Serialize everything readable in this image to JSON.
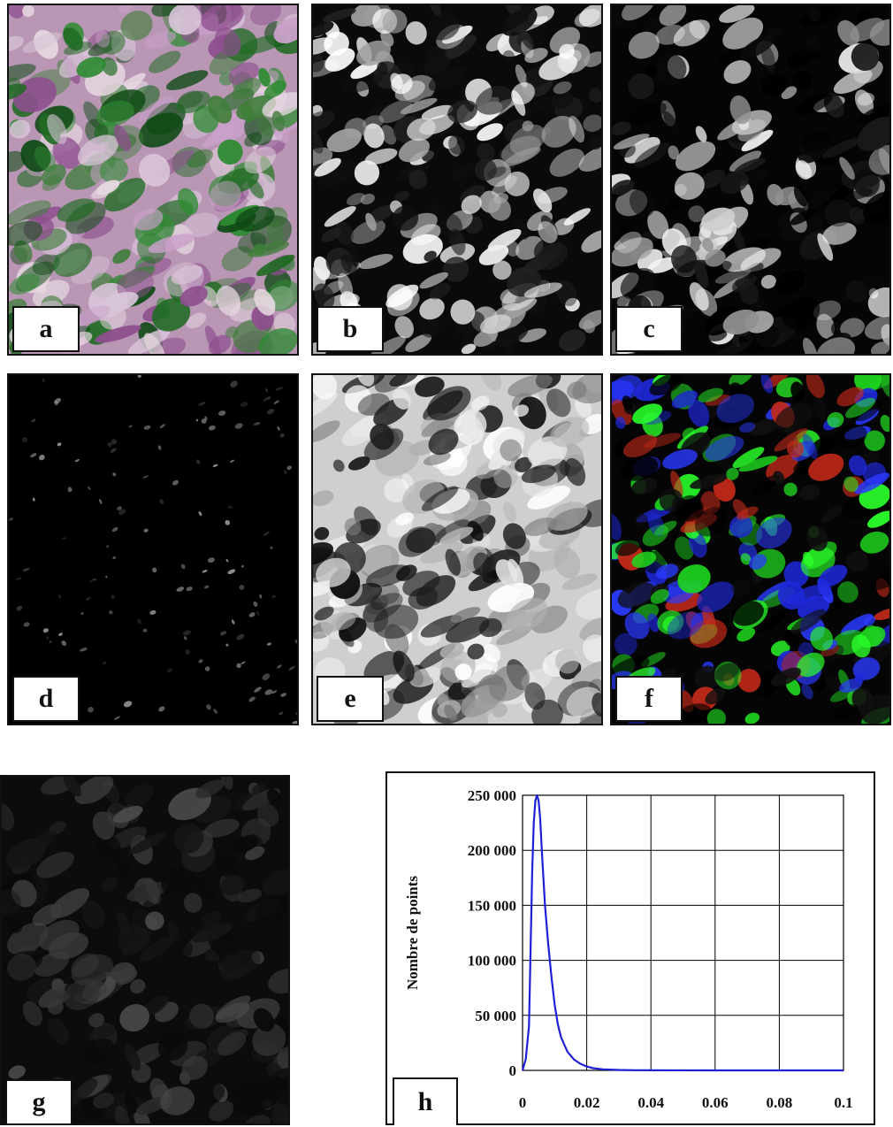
{
  "panels": [
    {
      "id": "a",
      "label": "a",
      "kind": "color-composite"
    },
    {
      "id": "b",
      "label": "b",
      "kind": "grayscale-fraction"
    },
    {
      "id": "c",
      "label": "c",
      "kind": "grayscale-fraction"
    },
    {
      "id": "d",
      "label": "d",
      "kind": "grayscale-sparse"
    },
    {
      "id": "e",
      "label": "e",
      "kind": "grayscale-inverse"
    },
    {
      "id": "f",
      "label": "f",
      "kind": "rgb-composite"
    },
    {
      "id": "g",
      "label": "g",
      "kind": "grayscale-dim"
    }
  ],
  "chart_label": "h",
  "chart_data": {
    "type": "line",
    "title": "",
    "xlabel": "",
    "ylabel": "Nombre de points",
    "xlim": [
      0,
      0.1
    ],
    "ylim": [
      0,
      250000
    ],
    "x_ticks": [
      "0",
      "0.02",
      "0.04",
      "0.06",
      "0.08",
      "0.1"
    ],
    "y_ticks": [
      "0",
      "50 000",
      "100 000",
      "150 000",
      "200 000",
      "250 000"
    ],
    "grid": true,
    "line_color": "#1f1fd6",
    "series": [
      {
        "x": [
          0,
          0.001,
          0.002,
          0.0025,
          0.003,
          0.0035,
          0.004,
          0.0045,
          0.005,
          0.0055,
          0.006,
          0.007,
          0.008,
          0.009,
          0.01,
          0.011,
          0.012,
          0.014,
          0.016,
          0.018,
          0.02,
          0.022,
          0.025,
          0.03,
          0.035,
          0.04,
          0.06,
          0.08,
          0.1
        ],
        "y": [
          0,
          10000,
          40000,
          110000,
          180000,
          225000,
          245000,
          250000,
          245000,
          228000,
          200000,
          150000,
          115000,
          85000,
          60000,
          42000,
          30000,
          17000,
          10000,
          6000,
          3500,
          2000,
          1000,
          400,
          200,
          100,
          0,
          0,
          0
        ]
      }
    ]
  }
}
